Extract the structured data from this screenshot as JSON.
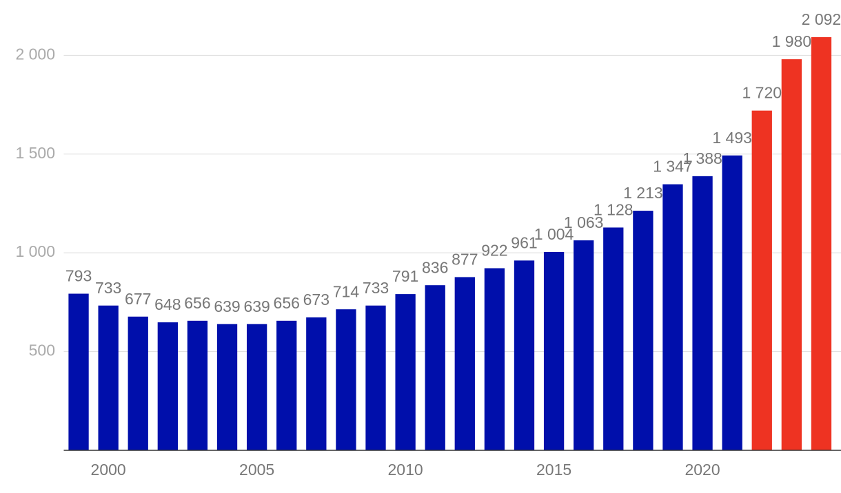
{
  "chart_data": {
    "type": "bar",
    "categories": [
      null,
      "2000",
      null,
      null,
      null,
      null,
      "2005",
      null,
      null,
      null,
      null,
      "2010",
      null,
      null,
      null,
      null,
      "2015",
      null,
      null,
      null,
      null,
      "2020",
      null,
      null,
      null,
      null
    ],
    "values": [
      793,
      733,
      677,
      648,
      656,
      639,
      639,
      656,
      673,
      714,
      733,
      791,
      836,
      877,
      922,
      961,
      1004,
      1063,
      1128,
      1213,
      1347,
      1388,
      1493,
      1720,
      1980,
      2092
    ],
    "value_labels": [
      "793",
      "733",
      "677",
      "648",
      "656",
      "639",
      "639",
      "656",
      "673",
      "714",
      "733",
      "791",
      "836",
      "877",
      "922",
      "961",
      "1 004",
      "1 063",
      "1 128",
      "1 213",
      "1 347",
      "1 388",
      "1 493",
      "1 720",
      "1 980",
      "2 092"
    ],
    "colors": [
      "#000fab",
      "#000fab",
      "#000fab",
      "#000fab",
      "#000fab",
      "#000fab",
      "#000fab",
      "#000fab",
      "#000fab",
      "#000fab",
      "#000fab",
      "#000fab",
      "#000fab",
      "#000fab",
      "#000fab",
      "#000fab",
      "#000fab",
      "#000fab",
      "#000fab",
      "#000fab",
      "#000fab",
      "#000fab",
      "#000fab",
      "#ee3322",
      "#ee3322",
      "#ee3322"
    ],
    "ylim": [
      0,
      2280
    ],
    "yticks": [
      500,
      {
        "value": 1000,
        "label": "1 000"
      },
      {
        "value": 1500,
        "label": "1 500"
      },
      {
        "value": 2000,
        "label": "2 000"
      }
    ],
    "grid": true
  }
}
